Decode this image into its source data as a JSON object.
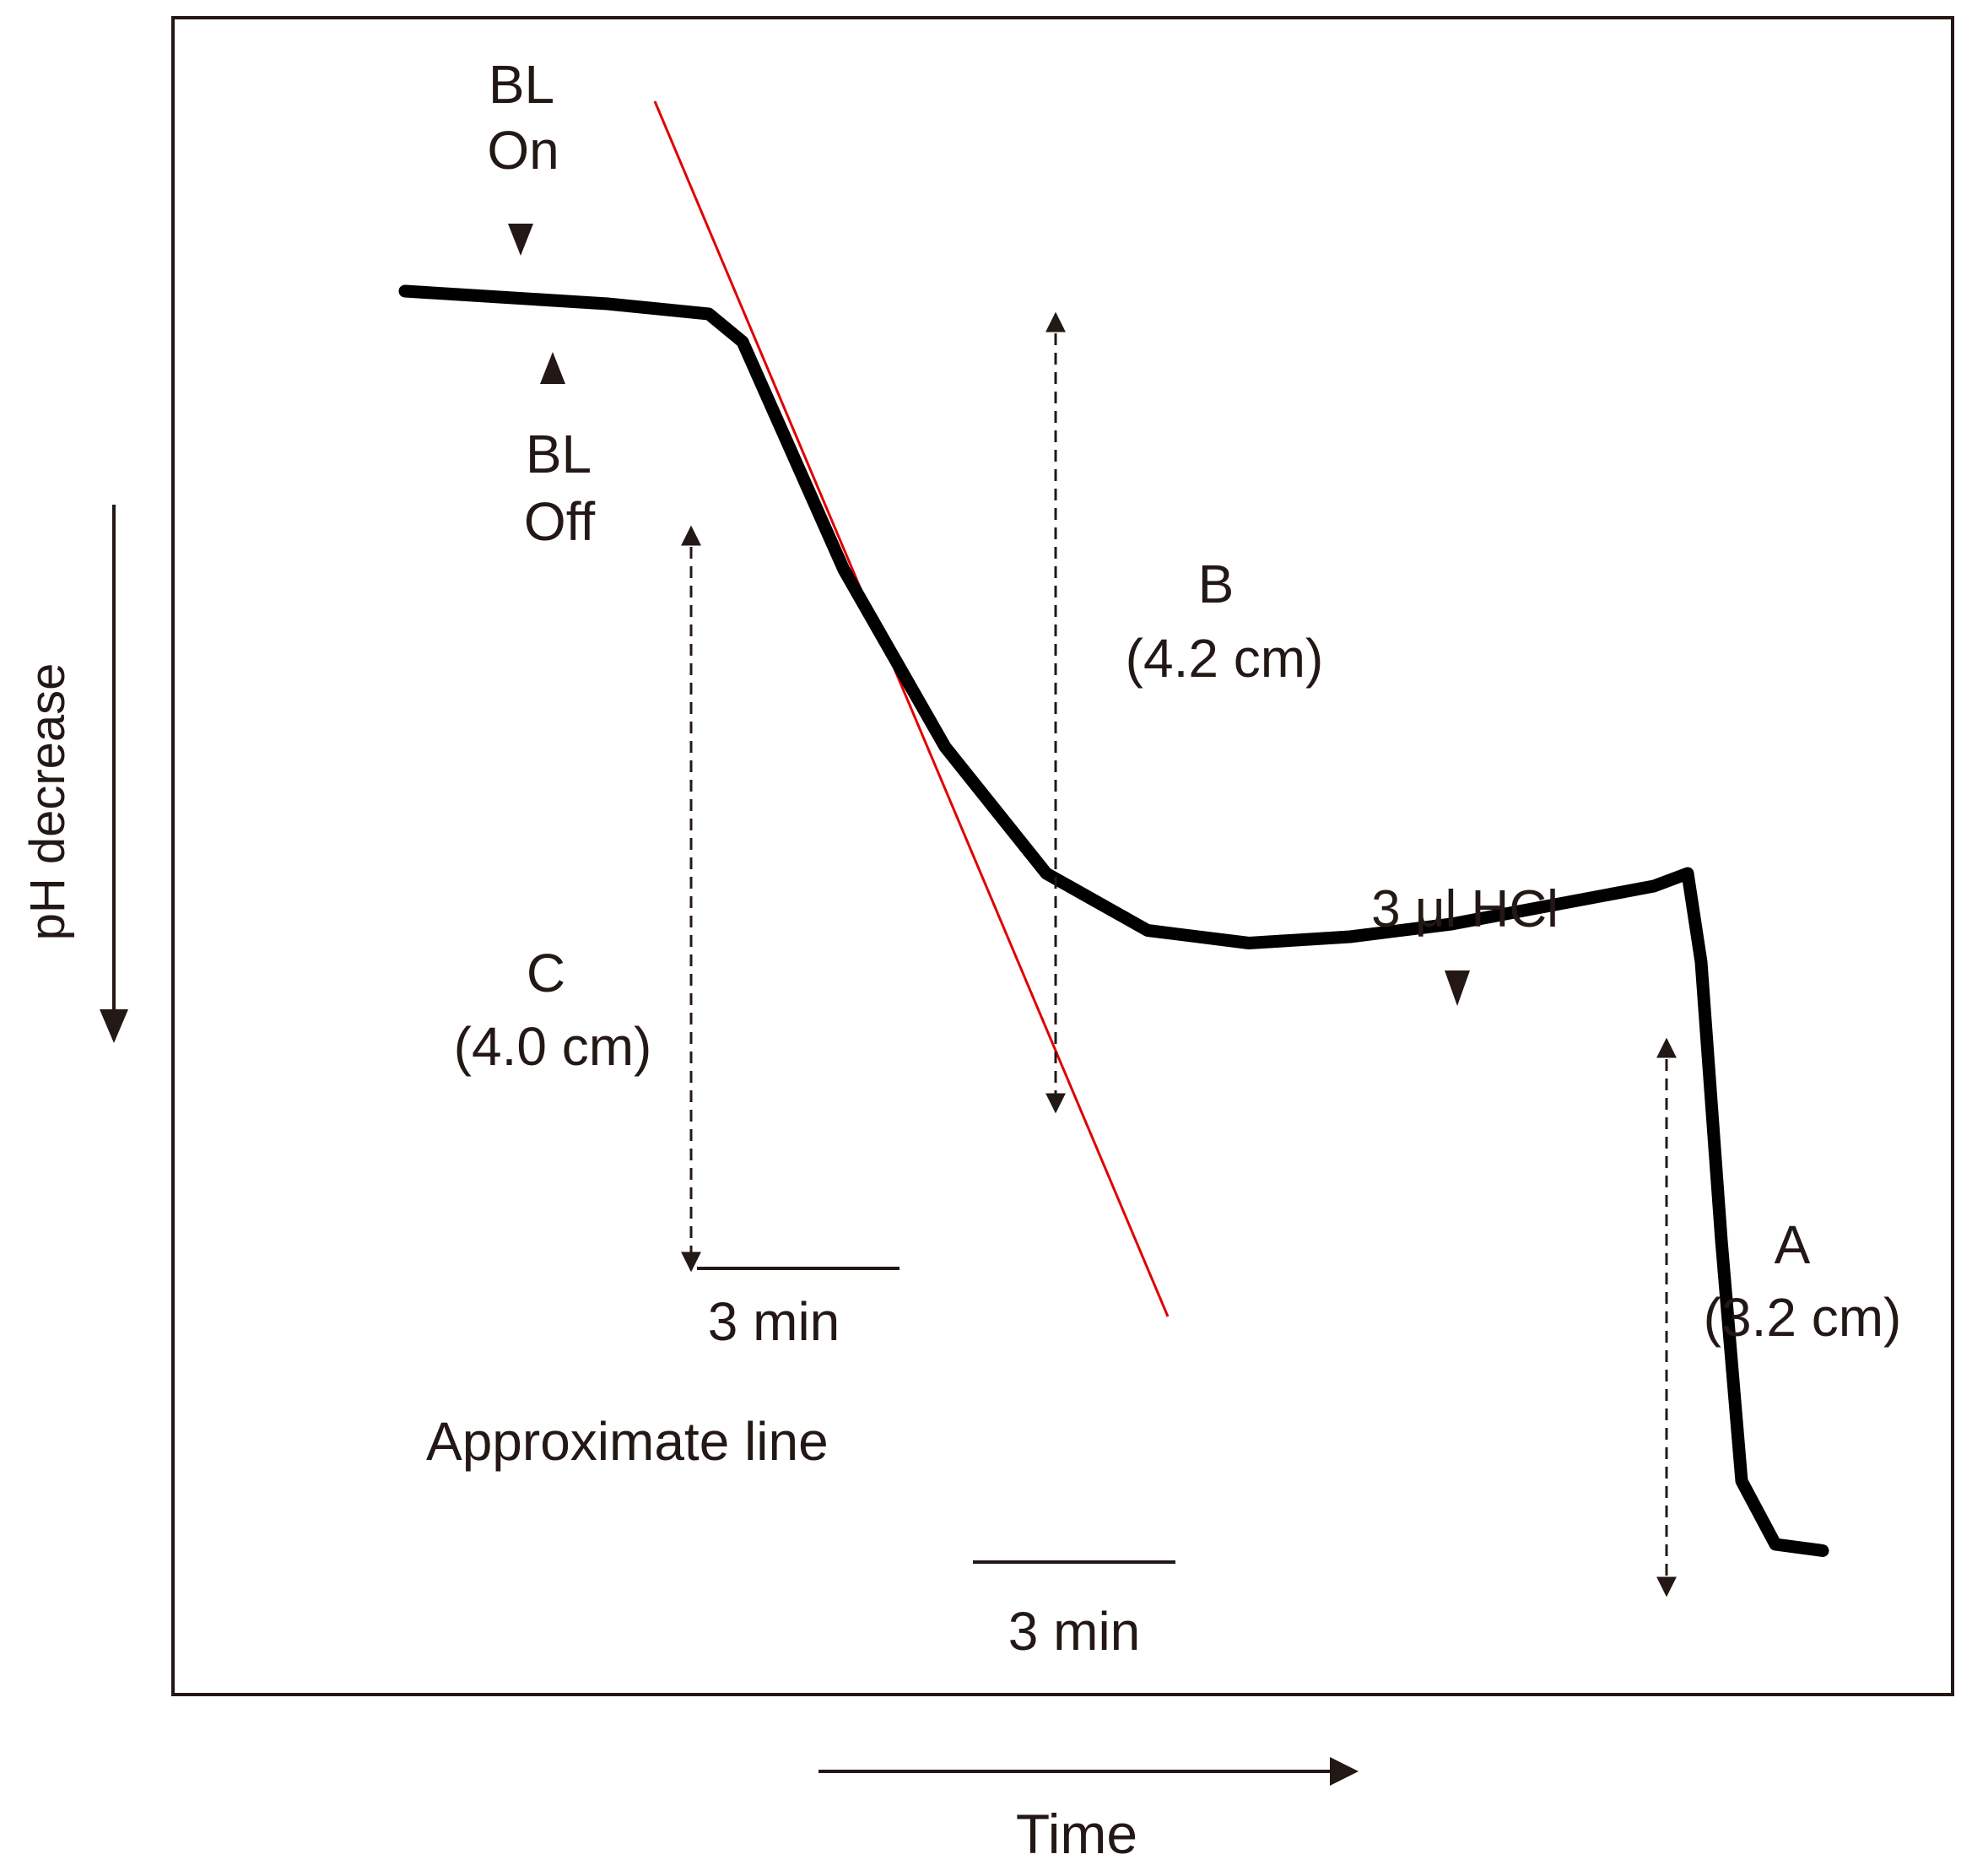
{
  "chart_data": {
    "type": "line",
    "title": "",
    "xlabel": "Time",
    "ylabel": "pH decrease",
    "grid": false,
    "legend": "none",
    "colors": {
      "trace": "#000000",
      "approx_line": "#e00000",
      "annotation": "#231815"
    },
    "series": [
      {
        "values": [
          [
            0.0,
            0.0
          ],
          [
            1.5,
            0.05
          ],
          [
            3.0,
            0.1
          ],
          [
            4.5,
            0.18
          ],
          [
            5.0,
            0.4
          ],
          [
            6.5,
            2.2
          ],
          [
            8.0,
            3.6
          ],
          [
            9.5,
            4.6
          ],
          [
            11.0,
            5.05
          ],
          [
            12.5,
            5.15
          ],
          [
            14.0,
            5.1
          ],
          [
            15.5,
            5.0
          ],
          [
            17.0,
            4.85
          ],
          [
            18.5,
            4.7
          ],
          [
            19.0,
            4.6
          ],
          [
            19.2,
            5.3
          ],
          [
            19.5,
            7.5
          ],
          [
            19.8,
            9.4
          ],
          [
            20.3,
            9.9
          ],
          [
            21.0,
            9.95
          ]
        ]
      }
    ],
    "approximate_line": {
      "label": "Approximate line",
      "x": [
        3.7,
        11.3
      ],
      "y": [
        -1.5,
        8.1
      ]
    },
    "annotations": {
      "bl_on": {
        "line1": "BL",
        "line2": "On"
      },
      "bl_off": {
        "line1": "BL",
        "line2": "Off"
      },
      "hcl": "3 μl HCl",
      "measurements": [
        {
          "letter": "A",
          "value": "(3.2 cm)"
        },
        {
          "letter": "B",
          "value": "(4.2 cm)"
        },
        {
          "letter": "C",
          "value": "(4.0 cm)"
        }
      ],
      "scale_bars": [
        "3 min",
        "3 min"
      ]
    }
  }
}
